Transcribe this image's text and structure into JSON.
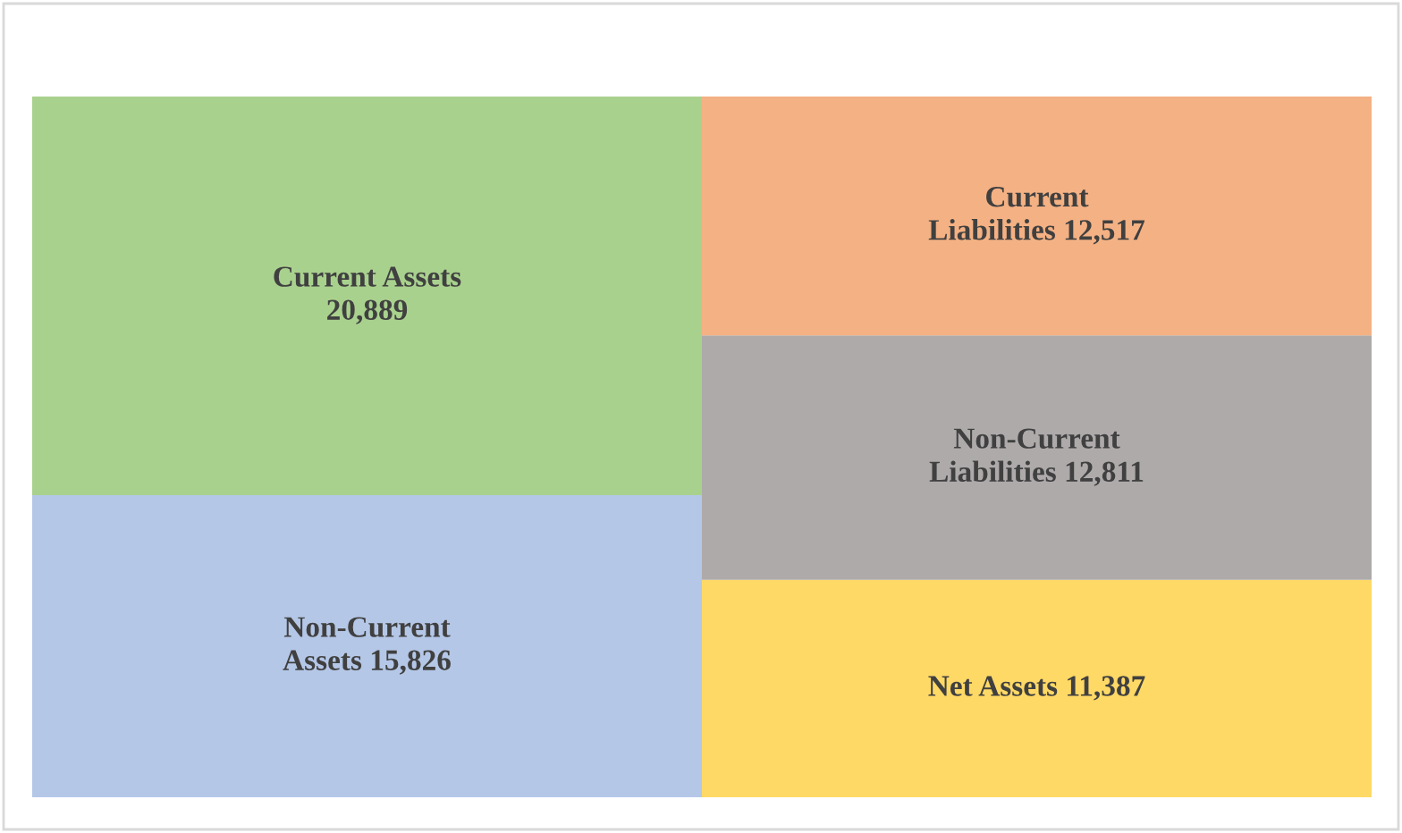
{
  "chart_data": {
    "type": "bar",
    "stacked": true,
    "categories": [
      null,
      null
    ],
    "series": [
      {
        "color": "#b4c7e7",
        "values": [
          15826,
          null
        ],
        "value_labels": [
          "Non-Current\nAssets 15,826",
          null
        ]
      },
      {
        "color": "#a9d18e",
        "values": [
          20889,
          null
        ],
        "value_labels": [
          "Current Assets\n20,889",
          null
        ]
      },
      {
        "color": "#ffd966",
        "values": [
          null,
          11387
        ],
        "value_labels": [
          null,
          "Net Assets 11,387"
        ]
      },
      {
        "color": "#aeaaaa",
        "values": [
          null,
          12811
        ],
        "value_labels": [
          null,
          "Non-Current\nLiabilities 12,811"
        ]
      },
      {
        "color": "#f4b183",
        "values": [
          null,
          12517
        ],
        "value_labels": [
          null,
          "Current\nLiabilities 12,517"
        ]
      }
    ]
  }
}
